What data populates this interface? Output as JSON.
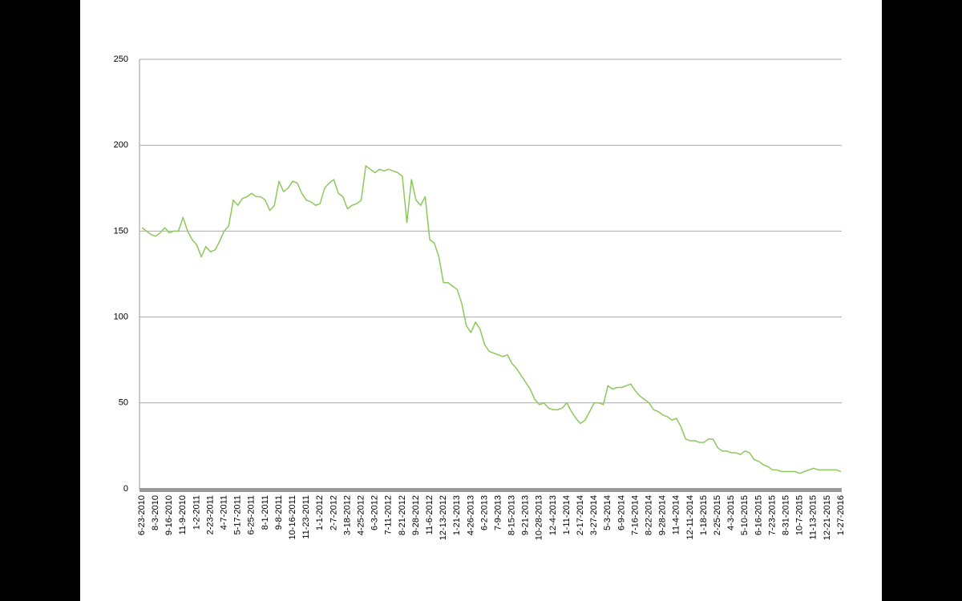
{
  "chart_data": {
    "type": "line",
    "color": "#8dc85d",
    "grid": true,
    "ylim": [
      0,
      250
    ],
    "yticks": [
      0,
      50,
      100,
      150,
      200,
      250
    ],
    "categories": [
      "6-23-2010",
      null,
      null,
      "8-3-2010",
      null,
      null,
      "9-16-2010",
      null,
      null,
      "11-9-2010",
      null,
      null,
      "1-2-2011",
      null,
      null,
      "2-23-2011",
      null,
      null,
      "4-7-2011",
      null,
      null,
      "5-17-2011",
      null,
      null,
      "6-25-2011",
      null,
      null,
      "8-1-2011",
      null,
      null,
      "9-8-2011",
      null,
      null,
      "10-16-2011",
      null,
      null,
      "11-23-2011",
      null,
      null,
      "1-1-2012",
      null,
      null,
      "2-7-2012",
      null,
      null,
      "3-18-2012",
      null,
      null,
      "4-25-2012",
      null,
      null,
      "6-3-2012",
      null,
      null,
      "7-11-2012",
      null,
      null,
      "8-21-2012",
      null,
      null,
      "9-28-2012",
      null,
      null,
      "11-6-2012",
      null,
      null,
      "12-13-2012",
      null,
      null,
      "1-21-2013",
      null,
      null,
      "4-26-2013",
      null,
      null,
      "6-2-2013",
      null,
      null,
      "7-9-2013",
      null,
      null,
      "8-15-2013",
      null,
      null,
      "9-21-2013",
      null,
      null,
      "10-28-2013",
      null,
      null,
      "12-4-2013",
      null,
      null,
      "1-11-2014",
      null,
      null,
      "2-17-2014",
      null,
      null,
      "3-27-2014",
      null,
      null,
      "5-3-2014",
      null,
      null,
      "6-9-2014",
      null,
      null,
      "7-16-2014",
      null,
      null,
      "8-22-2014",
      null,
      null,
      "9-28-2014",
      null,
      null,
      "11-4-2014",
      null,
      null,
      "12-11-2014",
      null,
      null,
      "1-18-2015",
      null,
      null,
      "2-25-2015",
      null,
      null,
      "4-3-2015",
      null,
      null,
      "5-10-2015",
      null,
      null,
      "6-16-2015",
      null,
      null,
      "7-23-2015",
      null,
      null,
      "8-31-2015",
      null,
      null,
      "10-7-2015",
      null,
      null,
      "11-13-2015",
      null,
      null,
      "12-21-2015",
      null,
      null,
      "1-27-2016"
    ],
    "values": [
      152,
      150,
      148,
      147,
      149,
      152,
      149,
      150,
      150,
      158,
      150,
      145,
      142,
      135,
      141,
      138,
      139,
      144,
      150,
      153,
      168,
      165,
      169,
      170,
      172,
      170,
      170,
      168,
      162,
      165,
      179,
      173,
      175,
      179,
      178,
      172,
      168,
      167,
      165,
      166,
      175,
      178,
      180,
      172,
      170,
      163,
      165,
      166,
      168,
      188,
      186,
      184,
      186,
      185,
      186,
      185,
      184,
      182,
      155,
      180,
      168,
      165,
      170,
      145,
      143,
      135,
      120,
      120,
      118,
      116,
      108,
      95,
      91,
      97,
      93,
      84,
      80,
      79,
      78,
      77,
      78,
      73,
      70,
      66,
      62,
      58,
      52,
      49,
      50,
      47,
      46,
      46,
      47,
      50,
      45,
      41,
      38,
      40,
      45,
      50,
      50,
      49,
      60,
      58,
      59,
      59,
      60,
      61,
      57,
      54,
      52,
      50,
      46,
      45,
      43,
      42,
      40,
      41,
      36,
      29,
      28,
      28,
      27,
      27,
      29,
      29,
      24,
      22,
      22,
      21,
      21,
      20,
      22,
      21,
      17,
      16,
      14,
      13,
      11,
      11,
      10,
      10,
      10,
      10,
      9,
      10,
      11,
      12,
      11,
      11,
      11,
      11,
      11,
      10
    ]
  }
}
